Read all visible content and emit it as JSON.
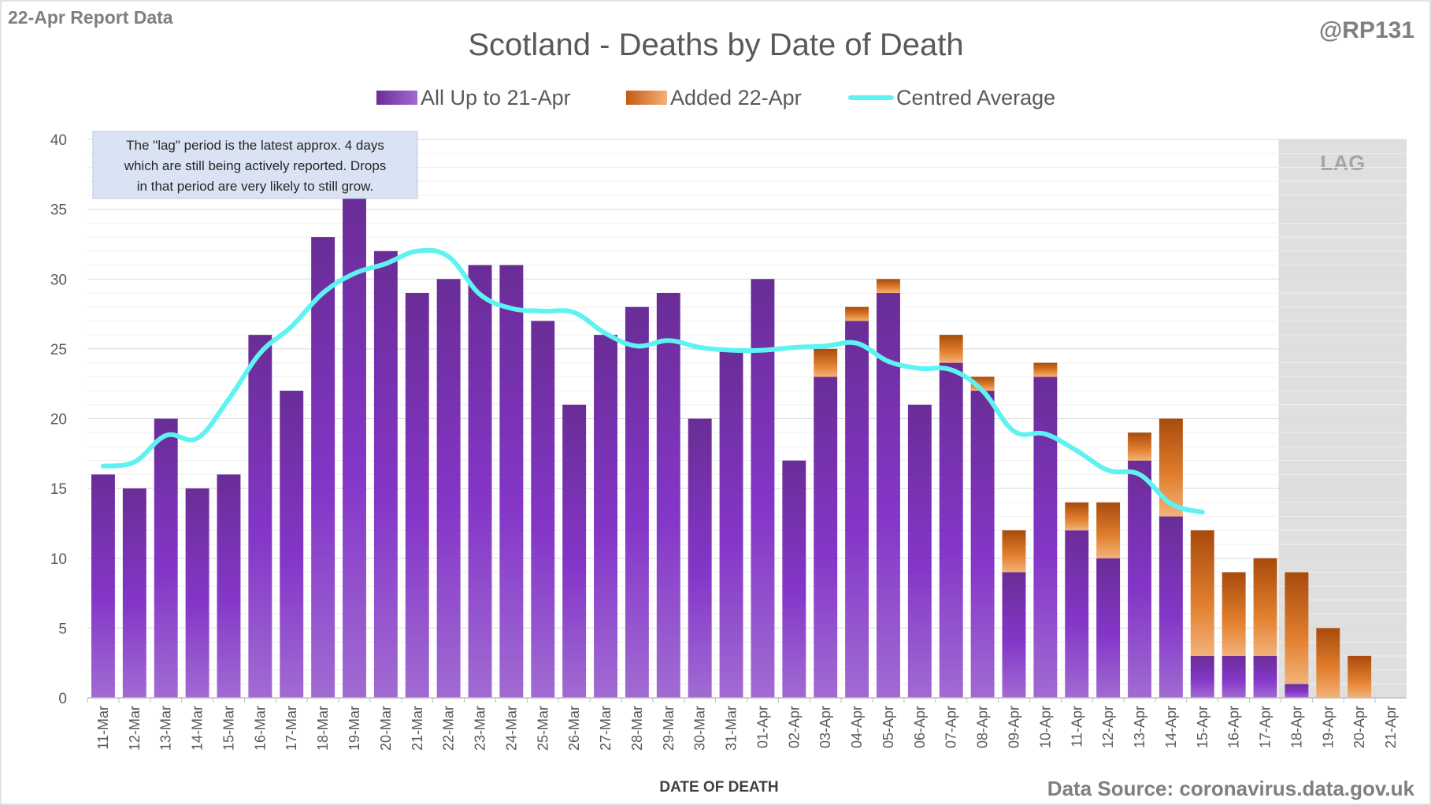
{
  "header": {
    "report_label": "22-Apr Report Data",
    "handle": "@RP131",
    "source": "Data Source: coronavirus.data.gov.uk"
  },
  "annotation": {
    "lines": [
      "The \"lag\" period is the latest approx. 4 days",
      "which are still being actively reported.  Drops",
      "in that period are very likely to still grow."
    ]
  },
  "lag_label": "LAG",
  "colors": {
    "all_up_to": "#7030a0",
    "added": "#c55a11",
    "centred_average": "#5ef2f2",
    "lag_shade": "#d9d9d9"
  },
  "chart_data": {
    "type": "bar",
    "stacked": true,
    "title": "Scotland - Deaths by Date of Death",
    "xlabel": "DATE OF DEATH",
    "ylabel": "",
    "ylim": [
      0,
      40
    ],
    "yticks": [
      0,
      5,
      10,
      15,
      20,
      25,
      30,
      35,
      40
    ],
    "grid": true,
    "legend_position": "top-center",
    "categories": [
      "11-Mar",
      "12-Mar",
      "13-Mar",
      "14-Mar",
      "15-Mar",
      "16-Mar",
      "17-Mar",
      "18-Mar",
      "19-Mar",
      "20-Mar",
      "21-Mar",
      "22-Mar",
      "23-Mar",
      "24-Mar",
      "25-Mar",
      "26-Mar",
      "27-Mar",
      "28-Mar",
      "29-Mar",
      "30-Mar",
      "31-Mar",
      "01-Apr",
      "02-Apr",
      "03-Apr",
      "04-Apr",
      "05-Apr",
      "06-Apr",
      "07-Apr",
      "08-Apr",
      "09-Apr",
      "10-Apr",
      "11-Apr",
      "12-Apr",
      "13-Apr",
      "14-Apr",
      "15-Apr",
      "16-Apr",
      "17-Apr",
      "18-Apr",
      "19-Apr",
      "20-Apr",
      "21-Apr"
    ],
    "series": [
      {
        "name": "All Up to 21-Apr",
        "kind": "bar",
        "values": [
          16,
          15,
          20,
          15,
          16,
          26,
          22,
          33,
          36,
          32,
          29,
          30,
          31,
          31,
          27,
          21,
          26,
          28,
          29,
          20,
          25,
          30,
          17,
          23,
          27,
          29,
          21,
          24,
          22,
          9,
          23,
          12,
          10,
          17,
          13,
          3,
          3,
          3,
          1,
          0,
          0,
          0
        ]
      },
      {
        "name": "Added 22-Apr",
        "kind": "bar",
        "values": [
          0,
          0,
          0,
          0,
          0,
          0,
          0,
          0,
          0,
          0,
          0,
          0,
          0,
          0,
          0,
          0,
          0,
          0,
          0,
          0,
          0,
          0,
          0,
          2,
          1,
          1,
          0,
          2,
          1,
          3,
          1,
          2,
          4,
          2,
          7,
          9,
          6,
          7,
          8,
          5,
          3,
          0
        ]
      },
      {
        "name": "Centred Average",
        "kind": "line",
        "values": [
          16.6,
          16.9,
          18.8,
          18.6,
          21.4,
          24.7,
          26.6,
          29.0,
          30.4,
          31.1,
          32.0,
          31.6,
          28.9,
          27.9,
          27.7,
          27.6,
          26.1,
          25.2,
          25.6,
          25.1,
          24.9,
          24.9,
          25.1,
          25.2,
          25.4,
          24.1,
          23.6,
          23.5,
          22.0,
          19.1,
          18.9,
          17.7,
          16.3,
          16.0,
          13.9,
          13.3,
          null,
          null,
          null,
          null,
          null,
          null
        ]
      }
    ],
    "lag_range": [
      "18-Apr",
      "21-Apr"
    ]
  }
}
